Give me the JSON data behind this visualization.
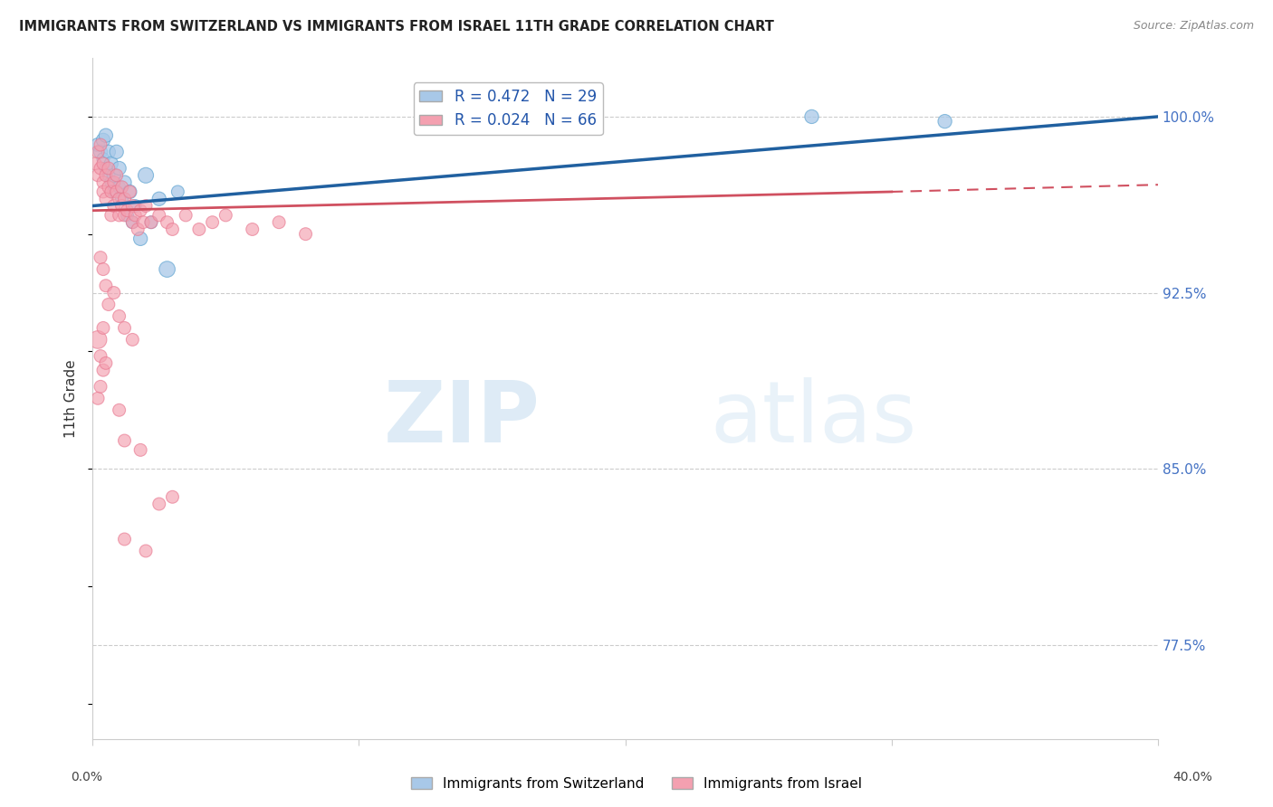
{
  "title": "IMMIGRANTS FROM SWITZERLAND VS IMMIGRANTS FROM ISRAEL 11TH GRADE CORRELATION CHART",
  "source": "Source: ZipAtlas.com",
  "ylabel": "11th Grade",
  "yticks": [
    0.775,
    0.85,
    0.925,
    1.0
  ],
  "ytick_labels": [
    "77.5%",
    "85.0%",
    "92.5%",
    "100.0%"
  ],
  "xmin": 0.0,
  "xmax": 0.4,
  "ymin": 0.735,
  "ymax": 1.025,
  "legend_label_blue": "R = 0.472   N = 29",
  "legend_label_pink": "R = 0.024   N = 66",
  "legend_bottom_blue": "Immigrants from Switzerland",
  "legend_bottom_pink": "Immigrants from Israel",
  "blue_color": "#a8c8e8",
  "pink_color": "#f4a0b0",
  "blue_edge_color": "#6aaad4",
  "pink_edge_color": "#e87890",
  "blue_line_color": "#2060a0",
  "pink_line_color": "#d05060",
  "watermark_zip": "ZIP",
  "watermark_atlas": "atlas",
  "blue_scatter_x": [
    0.002,
    0.003,
    0.004,
    0.004,
    0.005,
    0.005,
    0.006,
    0.006,
    0.007,
    0.007,
    0.008,
    0.008,
    0.009,
    0.01,
    0.01,
    0.011,
    0.012,
    0.013,
    0.014,
    0.015,
    0.016,
    0.018,
    0.02,
    0.022,
    0.025,
    0.028,
    0.032,
    0.27,
    0.32
  ],
  "blue_scatter_y": [
    0.988,
    0.985,
    0.982,
    0.99,
    0.978,
    0.992,
    0.975,
    0.985,
    0.972,
    0.98,
    0.968,
    0.975,
    0.985,
    0.97,
    0.978,
    0.965,
    0.972,
    0.958,
    0.968,
    0.955,
    0.962,
    0.948,
    0.975,
    0.955,
    0.965,
    0.935,
    0.968,
    1.0,
    0.998
  ],
  "blue_scatter_size": [
    120,
    120,
    100,
    120,
    100,
    120,
    100,
    120,
    100,
    120,
    100,
    120,
    120,
    100,
    120,
    100,
    120,
    100,
    120,
    100,
    100,
    120,
    150,
    100,
    120,
    160,
    100,
    120,
    120
  ],
  "pink_scatter_x": [
    0.001,
    0.002,
    0.002,
    0.003,
    0.003,
    0.004,
    0.004,
    0.004,
    0.005,
    0.005,
    0.006,
    0.006,
    0.007,
    0.007,
    0.008,
    0.008,
    0.009,
    0.009,
    0.01,
    0.01,
    0.011,
    0.011,
    0.012,
    0.012,
    0.013,
    0.014,
    0.015,
    0.015,
    0.016,
    0.017,
    0.018,
    0.019,
    0.02,
    0.022,
    0.025,
    0.028,
    0.03,
    0.035,
    0.04,
    0.045,
    0.05,
    0.06,
    0.07,
    0.08,
    0.003,
    0.004,
    0.005,
    0.006,
    0.008,
    0.01,
    0.012,
    0.015,
    0.002,
    0.003,
    0.004,
    0.004,
    0.005,
    0.01,
    0.012,
    0.018,
    0.025,
    0.03,
    0.002,
    0.003,
    0.012,
    0.02
  ],
  "pink_scatter_y": [
    0.98,
    0.985,
    0.975,
    0.978,
    0.988,
    0.972,
    0.968,
    0.98,
    0.975,
    0.965,
    0.97,
    0.978,
    0.968,
    0.958,
    0.972,
    0.962,
    0.968,
    0.975,
    0.965,
    0.958,
    0.97,
    0.962,
    0.958,
    0.965,
    0.96,
    0.968,
    0.955,
    0.962,
    0.958,
    0.952,
    0.96,
    0.955,
    0.962,
    0.955,
    0.958,
    0.955,
    0.952,
    0.958,
    0.952,
    0.955,
    0.958,
    0.952,
    0.955,
    0.95,
    0.94,
    0.935,
    0.928,
    0.92,
    0.925,
    0.915,
    0.91,
    0.905,
    0.905,
    0.898,
    0.892,
    0.91,
    0.895,
    0.875,
    0.862,
    0.858,
    0.835,
    0.838,
    0.88,
    0.885,
    0.82,
    0.815
  ],
  "pink_scatter_size": [
    100,
    100,
    100,
    100,
    100,
    100,
    100,
    100,
    100,
    100,
    100,
    100,
    100,
    100,
    100,
    100,
    100,
    100,
    100,
    100,
    100,
    100,
    100,
    100,
    100,
    100,
    100,
    100,
    100,
    100,
    100,
    100,
    100,
    100,
    100,
    100,
    100,
    100,
    100,
    100,
    100,
    100,
    100,
    100,
    100,
    100,
    100,
    100,
    100,
    100,
    100,
    100,
    200,
    100,
    100,
    100,
    100,
    100,
    100,
    100,
    100,
    100,
    100,
    100,
    100,
    100
  ],
  "blue_trend_x0": 0.0,
  "blue_trend_x1": 0.4,
  "blue_trend_y0": 0.962,
  "blue_trend_y1": 1.0,
  "pink_trend_solid_x0": 0.0,
  "pink_trend_solid_x1": 0.3,
  "pink_trend_solid_y0": 0.96,
  "pink_trend_solid_y1": 0.968,
  "pink_trend_dash_x0": 0.3,
  "pink_trend_dash_x1": 0.4,
  "pink_trend_dash_y0": 0.968,
  "pink_trend_dash_y1": 0.971
}
